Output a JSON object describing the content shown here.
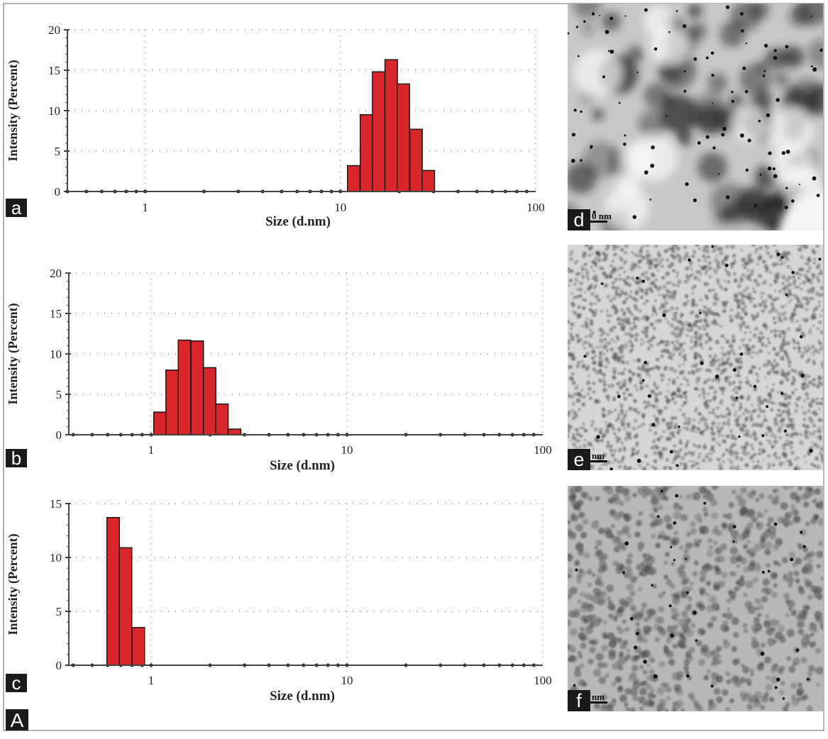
{
  "figure_label": "A",
  "colors": {
    "bar": "#d9262b",
    "bar_edge": "#1a1a1a",
    "axis": "#444444",
    "grid": "#aaaaaa",
    "panel_label_bg": "#1a1a1a"
  },
  "chart_data": [
    {
      "panel": "a",
      "type": "bar",
      "xscale": "log",
      "xlim": [
        0.4,
        100
      ],
      "ylim": [
        0,
        20
      ],
      "xlabel": "Size (d.nm)",
      "ylabel": "Intensity (Percent)",
      "xticks": [
        "1",
        "10",
        "100"
      ],
      "yticks": [
        "0",
        "5",
        "10",
        "15",
        "20"
      ],
      "grid": true,
      "x": [
        11.7,
        13.6,
        15.7,
        18.2,
        21.0,
        24.4,
        28.2
      ],
      "values": [
        3.2,
        9.5,
        14.8,
        16.3,
        13.3,
        7.7,
        2.6
      ]
    },
    {
      "panel": "b",
      "type": "bar",
      "xscale": "log",
      "xlim": [
        0.38,
        100
      ],
      "ylim": [
        0,
        20
      ],
      "xlabel": "Size (d.nm)",
      "ylabel": "Intensity (Percent)",
      "xticks": [
        "1",
        "10",
        "100"
      ],
      "yticks": [
        "0",
        "5",
        "10",
        "15",
        "20"
      ],
      "grid": true,
      "x": [
        1.11,
        1.28,
        1.48,
        1.72,
        1.99,
        2.3,
        2.67
      ],
      "values": [
        2.8,
        8.0,
        11.7,
        11.6,
        8.3,
        3.8,
        0.7
      ]
    },
    {
      "panel": "c",
      "type": "bar",
      "xscale": "log",
      "xlim": [
        0.38,
        100
      ],
      "ylim": [
        0,
        15
      ],
      "xlabel": "Size (d.nm)",
      "ylabel": "Intensity (Percent)",
      "xticks": [
        "1",
        "10",
        "100"
      ],
      "yticks": [
        "0",
        "5",
        "10",
        "15"
      ],
      "grid": true,
      "x": [
        0.64,
        0.74,
        0.86
      ],
      "values": [
        13.7,
        10.9,
        3.5
      ]
    }
  ],
  "images": [
    {
      "panel": "d",
      "scale_label": "0 nm",
      "style": "dark-clusters"
    },
    {
      "panel": "e",
      "scale_label": "nm",
      "style": "fine-grain"
    },
    {
      "panel": "f",
      "scale_label": "nm",
      "style": "medium-grain"
    }
  ]
}
